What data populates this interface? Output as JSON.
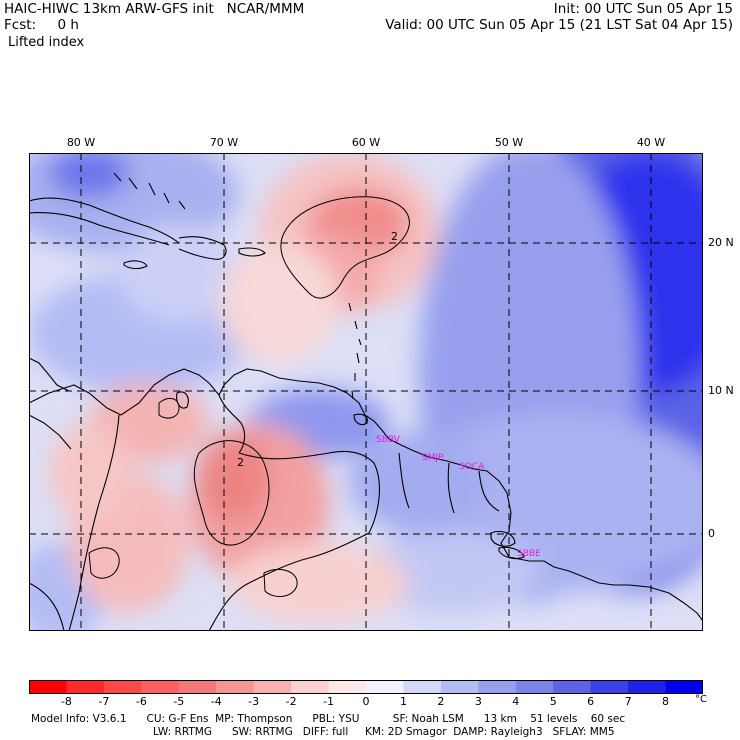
{
  "header": {
    "title": "HAIC-HIWC 13km ARW-GFS init   NCAR/MMM",
    "fcst": "Fcst:     0 h",
    "field": "Lifted index",
    "init": "Init: 00 UTC Sun 05 Apr 15",
    "valid": "Valid: 00 UTC Sun 05 Apr 15 (21 LST Sat 04 Apr 15)"
  },
  "map": {
    "lon_labels": [
      "80 W",
      "70 W",
      "60 W",
      "50 W",
      "40 W"
    ],
    "lat_labels": [
      "20 N",
      "10 N",
      "0"
    ],
    "station_labels": [
      "SBBV",
      "SMJP",
      "SOCA",
      "SBBE"
    ],
    "contour_labels": [
      "2",
      "2"
    ],
    "station_color": "#e020e0"
  },
  "colorbar": {
    "ticks": [
      "-8",
      "-7",
      "-6",
      "-5",
      "-4",
      "-3",
      "-2",
      "-1",
      "0",
      "1",
      "2",
      "3",
      "4",
      "5",
      "6",
      "7",
      "8"
    ],
    "unit": "°C",
    "colors": [
      "#ff0000",
      "#ff2a2a",
      "#ff4848",
      "#ff6060",
      "#f37878",
      "#f59595",
      "#f8b0b0",
      "#fad0d0",
      "#fde8e8",
      "#f2f2fc",
      "#d4d8f8",
      "#b4bcf4",
      "#98a0ee",
      "#7a84e8",
      "#5c64e4",
      "#3c40e4",
      "#2020e8",
      "#0000f0"
    ]
  },
  "model_info": {
    "line1": "Model Info: V3.6.1      CU: G-F Ens  MP: Thompson      PBL: YSU          SF: Noah LSM      13 km    51 levels    60 sec",
    "line2": "LW: RRTMG      SW: RRTMG   DIFF: full     KM: 2D Smagor  DAMP: Rayleigh3   SFLAY: MM5"
  }
}
